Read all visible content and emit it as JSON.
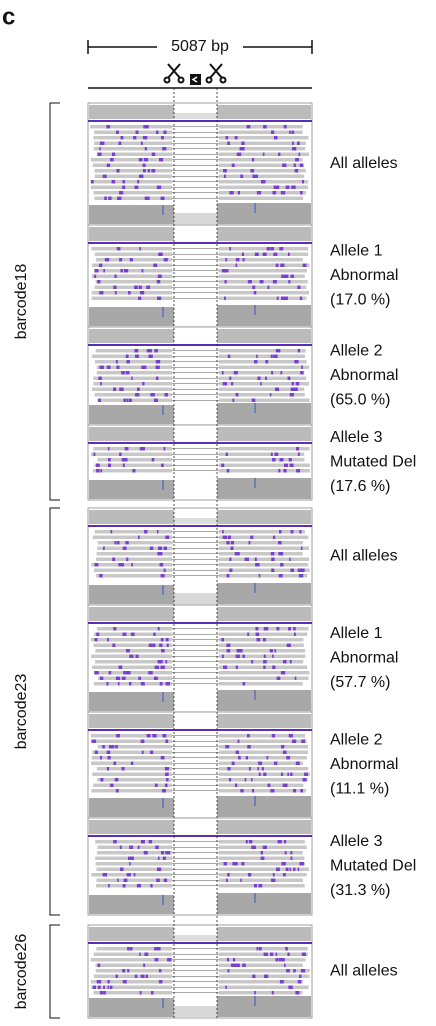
{
  "panel_label": "c",
  "scale_label": "5087 bp",
  "groups": [
    {
      "name": "barcode18",
      "tracks": [
        {
          "lines": [
            "All alleles"
          ]
        },
        {
          "lines": [
            "Allele 1",
            "Abnormal",
            "(17.0 %)"
          ]
        },
        {
          "lines": [
            "Allele 2",
            "Abnormal",
            "(65.0 %)"
          ]
        },
        {
          "lines": [
            "Allele 3",
            "Mutated Del",
            "(17.6 %)"
          ]
        }
      ]
    },
    {
      "name": "barcode23",
      "tracks": [
        {
          "lines": [
            "All alleles"
          ]
        },
        {
          "lines": [
            "Allele 1",
            "Abnormal",
            "(57.7 %)"
          ]
        },
        {
          "lines": [
            "Allele 2",
            "Abnormal",
            "(11.1 %)"
          ]
        },
        {
          "lines": [
            "Allele 3",
            "Mutated Del",
            "(31.3 %)"
          ]
        }
      ]
    },
    {
      "name": "barcode26",
      "tracks": [
        {
          "lines": [
            "All alleles"
          ]
        }
      ]
    }
  ]
}
